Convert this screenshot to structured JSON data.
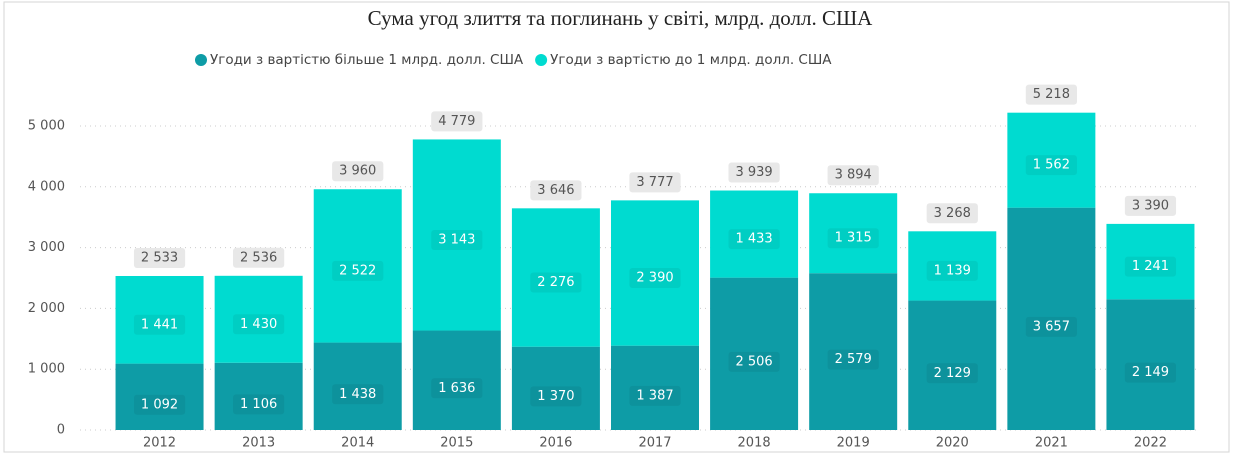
{
  "chart_data": {
    "type": "stacked_bar",
    "title": "Сума угод злиття та поглинань у світі, млрд. долл. США",
    "categories": [
      "2012",
      "2013",
      "2014",
      "2015",
      "2016",
      "2017",
      "2018",
      "2019",
      "2020",
      "2021",
      "2022"
    ],
    "series": [
      {
        "name": "Угоди з вартістю більше 1 млрд. долл. США",
        "color": "#0e9ca6",
        "values": [
          1092,
          1106,
          1438,
          1636,
          1370,
          1387,
          2506,
          2579,
          2129,
          3657,
          2149
        ],
        "value_labels": [
          "1 092",
          "1 106",
          "1 438",
          "1 636",
          "1 370",
          "1 387",
          "2 506",
          "2 579",
          "2 129",
          "3 657",
          "2 149"
        ]
      },
      {
        "name": "Угоди з вартістю до 1 млрд. долл. США",
        "color": "#00dbd0",
        "values": [
          1441,
          1430,
          2522,
          3143,
          2276,
          2390,
          1433,
          1315,
          1139,
          1562,
          1241
        ],
        "value_labels": [
          "1 441",
          "1 430",
          "2 522",
          "3 143",
          "2 276",
          "2 390",
          "1 433",
          "1 315",
          "1 139",
          "1 562",
          "1 241"
        ]
      }
    ],
    "totals": {
      "values": [
        2533,
        2536,
        3960,
        4779,
        3646,
        3777,
        3939,
        3894,
        3268,
        5218,
        3390
      ],
      "value_labels": [
        "2 533",
        "2 536",
        "3 960",
        "4 779",
        "3 646",
        "3 777",
        "3 939",
        "3 894",
        "3 268",
        "5 218",
        "3 390"
      ]
    },
    "ylim": [
      0,
      5500
    ],
    "yticks": [
      0,
      {
        "value": 1000,
        "label": "1 000"
      },
      {
        "value": 2000,
        "label": "2 000"
      },
      {
        "value": 3000,
        "label": "3 000"
      },
      {
        "value": 4000,
        "label": "4 000"
      },
      {
        "value": 5000,
        "label": "5 000"
      }
    ],
    "grid": true,
    "legend": "top"
  }
}
